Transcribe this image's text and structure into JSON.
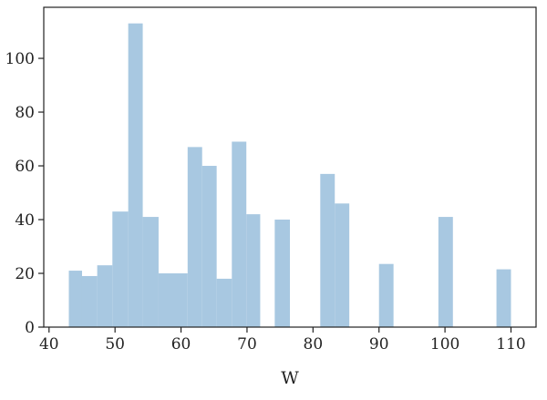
{
  "chart_data": {
    "type": "bar",
    "subtype": "histogram",
    "title": "",
    "xlabel": "W",
    "ylabel": "",
    "xlim": [
      39.2,
      113.8
    ],
    "ylim": [
      0,
      119
    ],
    "grid": false,
    "legend": "none",
    "bar_color": "#a8c8e1",
    "x_ticks": [
      40,
      50,
      60,
      70,
      80,
      90,
      100,
      110
    ],
    "y_ticks": [
      0,
      20,
      40,
      60,
      80,
      100
    ],
    "bins": [
      {
        "x0": 43,
        "x1": 45,
        "value": 21
      },
      {
        "x0": 45,
        "x1": 47.3,
        "value": 19
      },
      {
        "x0": 47.3,
        "x1": 49.6,
        "value": 23
      },
      {
        "x0": 49.6,
        "x1": 52,
        "value": 43
      },
      {
        "x0": 52,
        "x1": 54.2,
        "value": 113
      },
      {
        "x0": 54.2,
        "x1": 56.6,
        "value": 41
      },
      {
        "x0": 56.6,
        "x1": 61,
        "value": 20
      },
      {
        "x0": 61,
        "x1": 63.2,
        "value": 67
      },
      {
        "x0": 63.2,
        "x1": 65.4,
        "value": 60
      },
      {
        "x0": 65.4,
        "x1": 67.7,
        "value": 18
      },
      {
        "x0": 67.7,
        "x1": 69.9,
        "value": 69
      },
      {
        "x0": 69.9,
        "x1": 72,
        "value": 42
      },
      {
        "x0": 74.2,
        "x1": 76.5,
        "value": 40
      },
      {
        "x0": 81.1,
        "x1": 83.3,
        "value": 57
      },
      {
        "x0": 83.3,
        "x1": 85.5,
        "value": 46
      },
      {
        "x0": 90,
        "x1": 92.2,
        "value": 23.5
      },
      {
        "x0": 99,
        "x1": 101.2,
        "value": 41
      },
      {
        "x0": 107.8,
        "x1": 110,
        "value": 21.5
      }
    ]
  }
}
